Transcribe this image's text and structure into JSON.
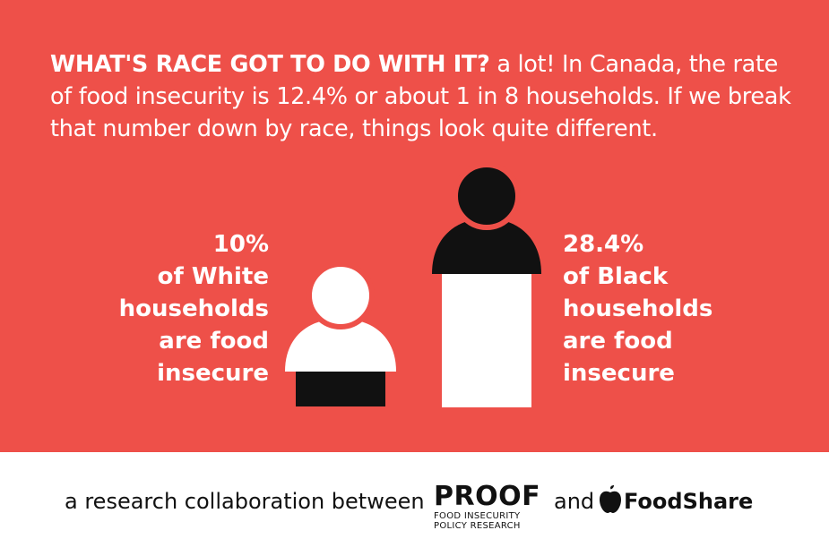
{
  "headline": {
    "bold": "WHAT'S RACE GOT TO DO WITH IT?",
    "rest": " a lot! In Canada, the rate of food insecurity is 12.4% or about 1 in 8 households. If we break that number down by race, things look quite different."
  },
  "stats": {
    "white": {
      "percent": "10%",
      "lines": [
        "of White",
        "households",
        "are food",
        "insecure"
      ],
      "value": 10
    },
    "black": {
      "percent": "28.4%",
      "lines": [
        "of Black",
        "households",
        "are food",
        "insecure"
      ],
      "value": 28.4
    }
  },
  "footer": {
    "intro": "a research collaboration between",
    "proof_name": "PROOF",
    "proof_tagline_1": "FOOD INSECURITY",
    "proof_tagline_2": "POLICY RESEARCH",
    "and": "and",
    "foodshare_name": "FoodShare"
  },
  "colors": {
    "background": "#ee5049",
    "figure_white": "#ffffff",
    "figure_black": "#111111"
  },
  "icons": {
    "white_household": "person-figure-icon",
    "black_household": "person-figure-icon",
    "foodshare_logo": "apple-icon"
  }
}
